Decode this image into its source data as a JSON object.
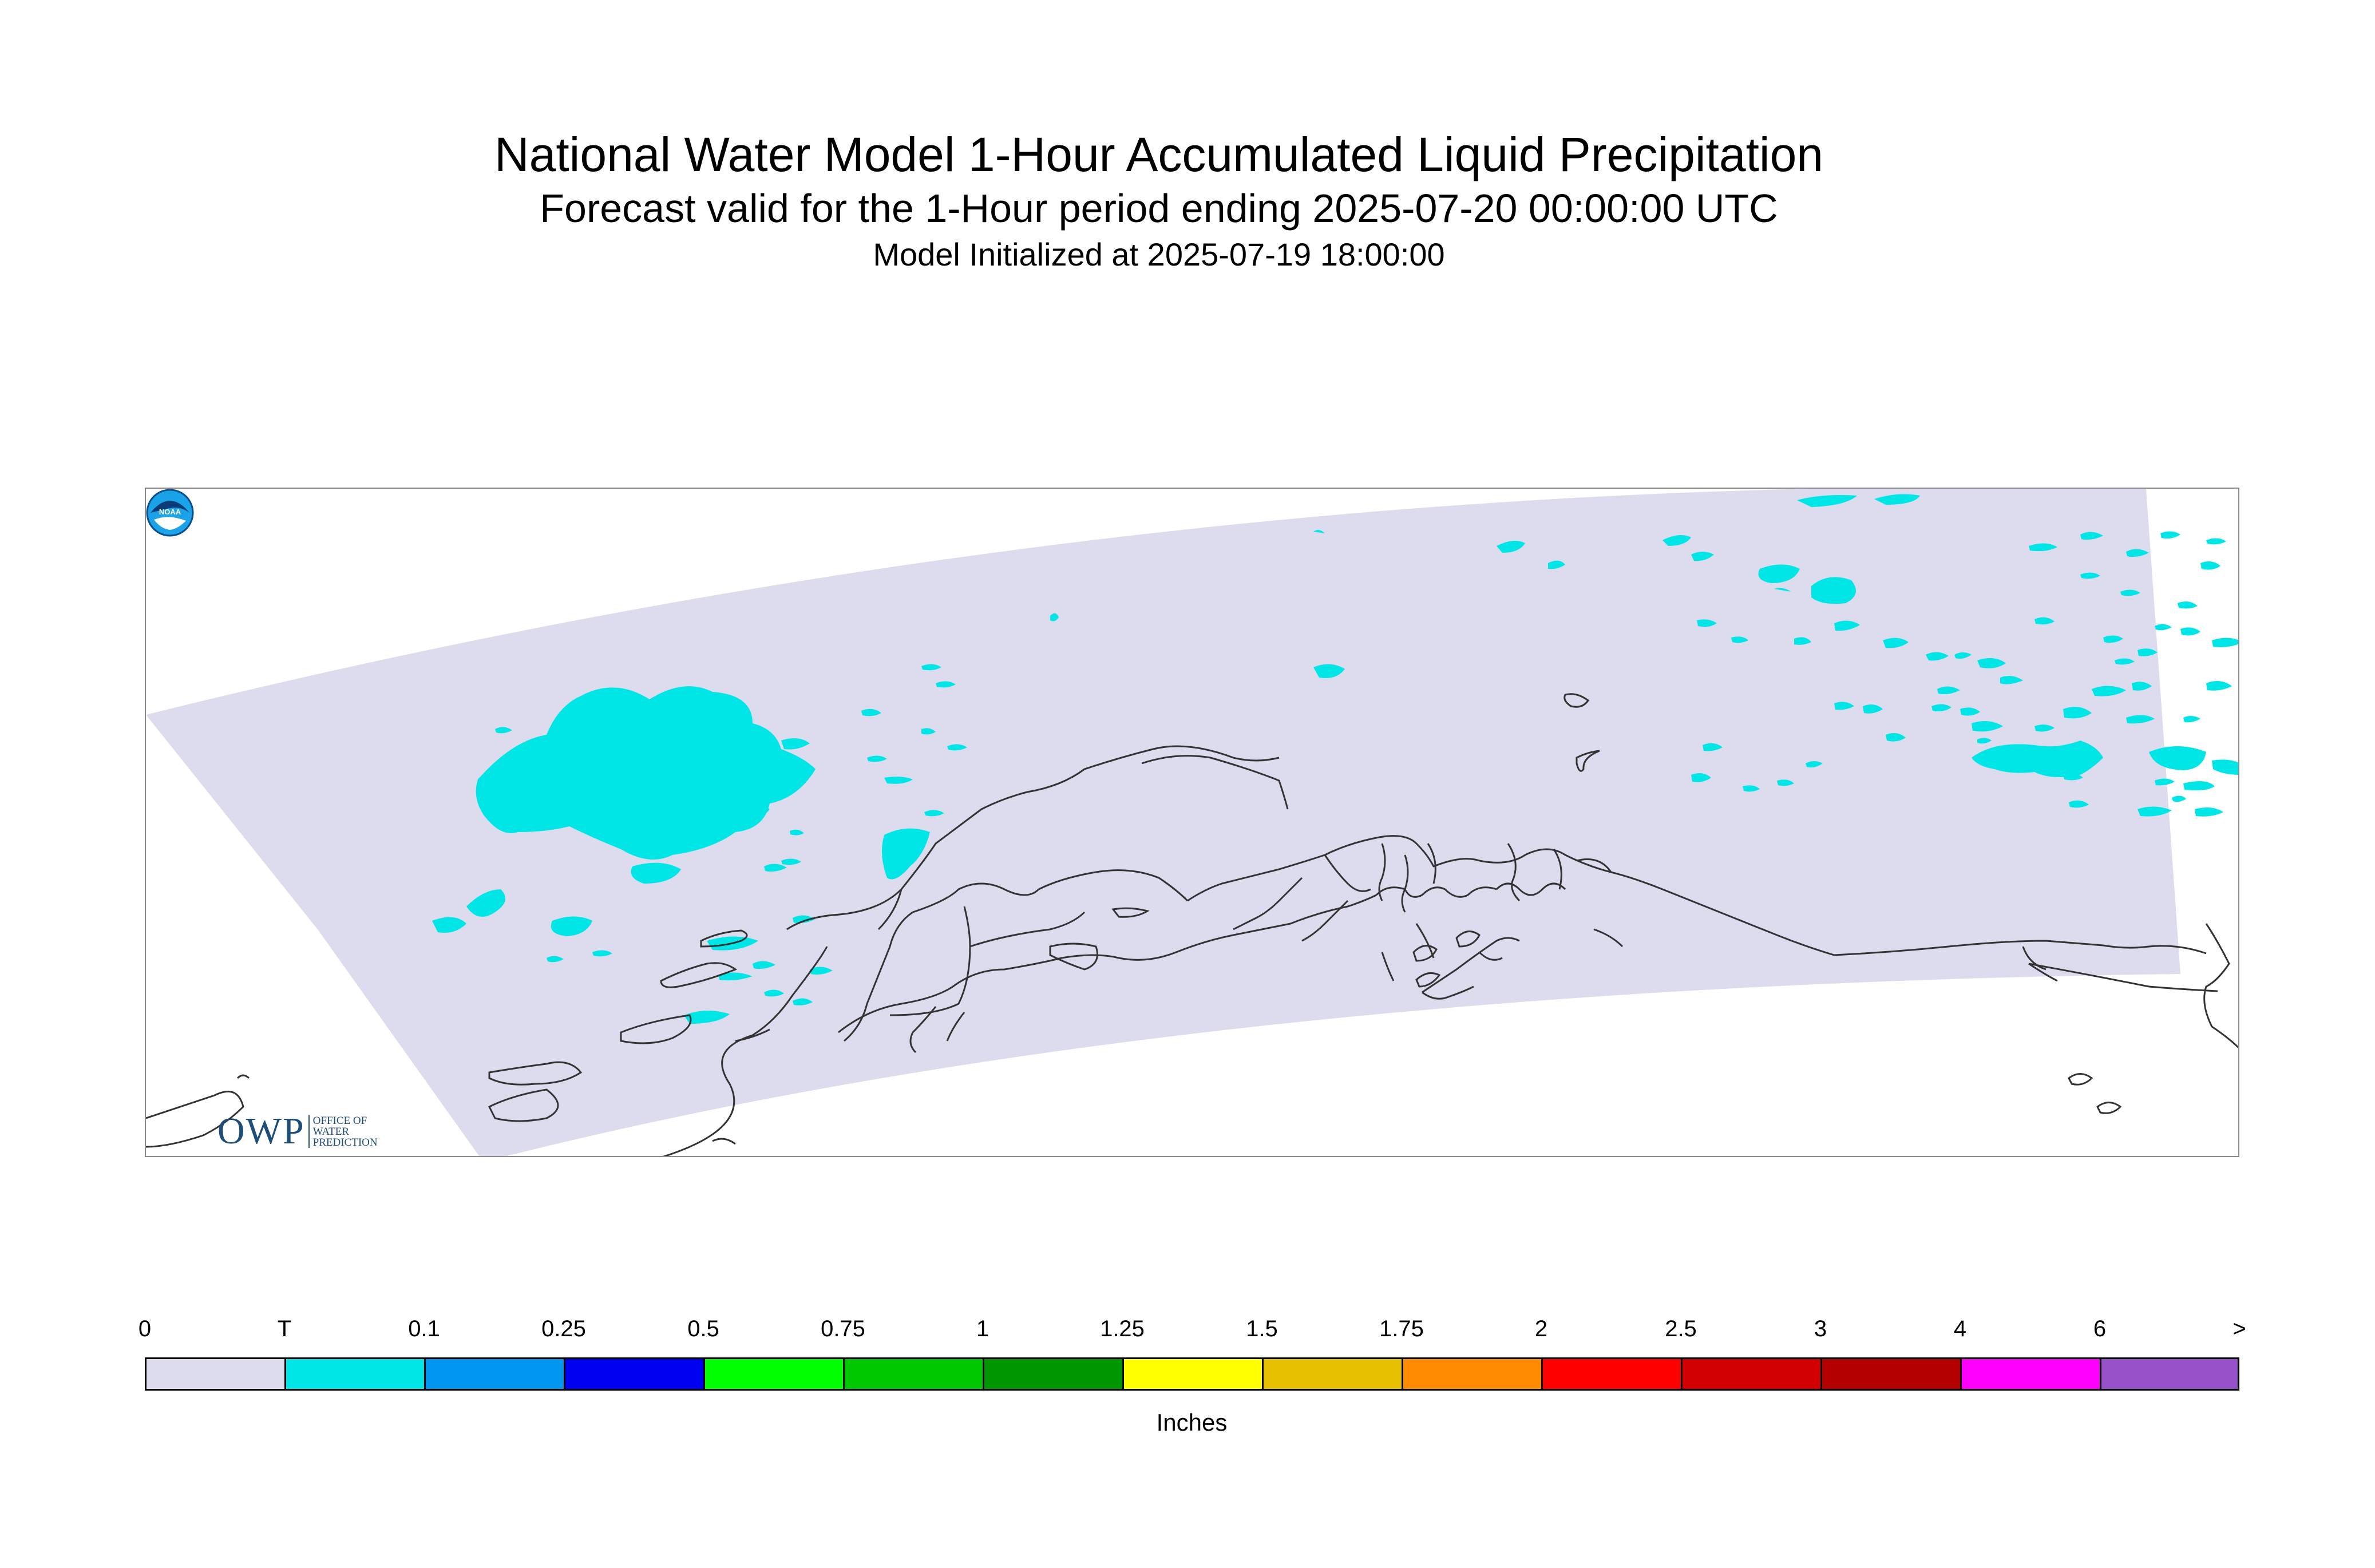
{
  "header": {
    "title": "National Water Model 1-Hour Accumulated Liquid Precipitation",
    "subtitle": "Forecast valid for the 1-Hour period ending 2025-07-20 00:00:00 UTC",
    "init": "Model Initialized at 2025-07-19 18:00:00"
  },
  "map": {
    "region": "Alaska",
    "domain_color": "#dcdcee",
    "precip_color": "#00e6e6",
    "coastline_color": "#333333"
  },
  "logos": {
    "owp_main": "OWP",
    "owp_sub": [
      "OFFICE OF",
      "WATER",
      "PREDICTION"
    ],
    "noaa_label": "NOAA",
    "noaa_icon": "noaa-logo-icon"
  },
  "legend": {
    "tick_labels": [
      "0",
      "T",
      "0.1",
      "0.25",
      "0.5",
      "0.75",
      "1",
      "1.25",
      "1.5",
      "1.75",
      "2",
      "2.5",
      "3",
      "4",
      "6",
      ">"
    ],
    "colors": [
      "#dcdcee",
      "#00e6e6",
      "#0096f0",
      "#0000f0",
      "#00ff00",
      "#00c800",
      "#009600",
      "#ffff00",
      "#e6c000",
      "#ff8c00",
      "#ff0000",
      "#d20000",
      "#b40000",
      "#ff00ff",
      "#9650c8"
    ],
    "units": "Inches"
  }
}
